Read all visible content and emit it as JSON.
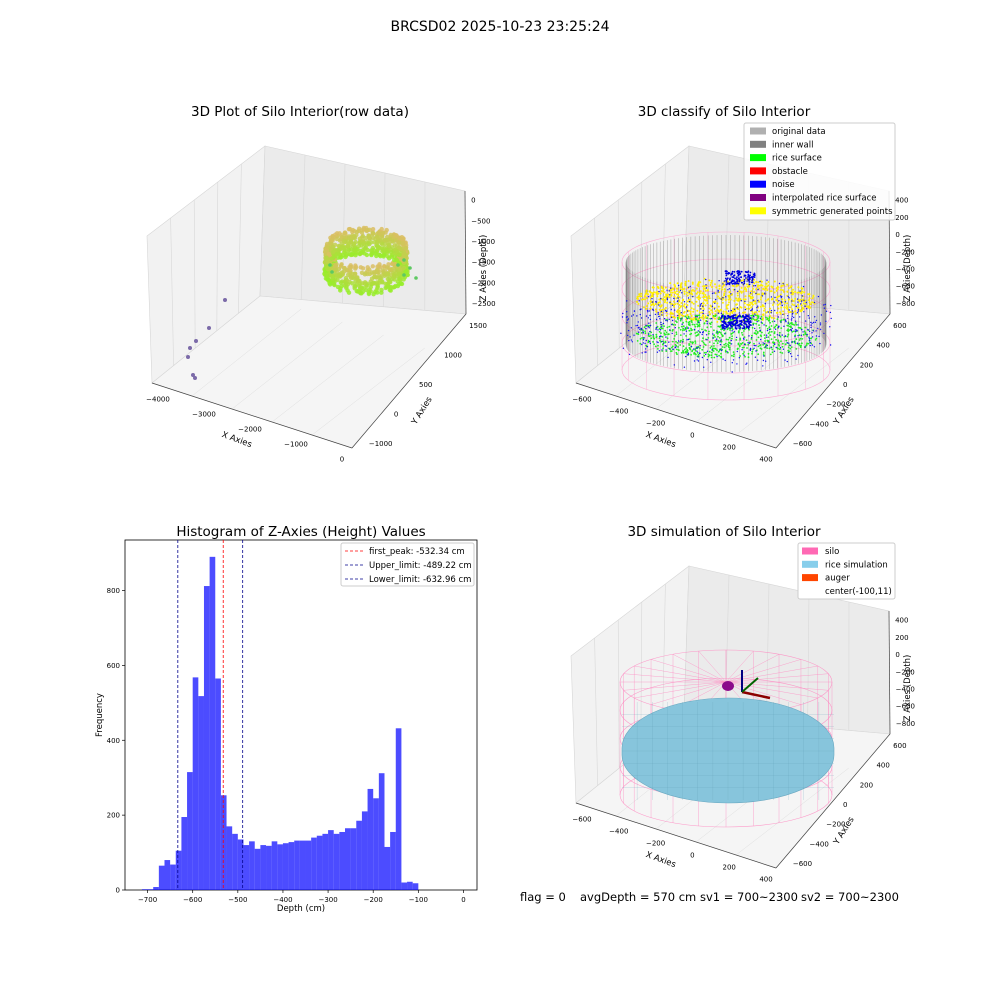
{
  "page": {
    "title": "BRCSD02 2025-10-23 23:25:24",
    "footer": {
      "flag": "flag = 0",
      "avg_depth": "avgDepth = 570 cm",
      "sv1": "sv1 = 700~2300",
      "sv2": "sv2 = 700~2300"
    }
  },
  "chart_data": [
    {
      "type": "scatter",
      "projection": "3d",
      "title": "3D Plot of Silo Interior(row data)",
      "xlabel": "X Axies",
      "ylabel": "Y Axies",
      "zlabel": "Z Axies (Depth)",
      "x_ticks": [
        "−4000",
        "−3000",
        "−2000",
        "−1000",
        "0"
      ],
      "y_ticks": [
        "−1000",
        "0",
        "500",
        "1000",
        "1500"
      ],
      "z_ticks": [
        "0",
        "−500",
        "−1000",
        "−1500",
        "−2000",
        "−2500"
      ],
      "colormap": "viridis",
      "outlier_points": [
        {
          "x": -3900,
          "y": 1200,
          "z": -2300
        },
        {
          "x": -3850,
          "y": 1150,
          "z": -2250
        },
        {
          "x": -3600,
          "y": 1100,
          "z": -1500
        },
        {
          "x": -3700,
          "y": 1300,
          "z": -1800
        }
      ]
    },
    {
      "type": "scatter",
      "projection": "3d",
      "title": "3D classify of Silo Interior",
      "xlabel": "X Axies",
      "ylabel": "Y Axies",
      "zlabel": "Z Axies (Depth)",
      "x_ticks": [
        "−600",
        "−400",
        "−200",
        "0",
        "200",
        "400"
      ],
      "y_ticks": [
        "−600",
        "−400",
        "−200",
        "0",
        "200",
        "400",
        "600"
      ],
      "z_ticks": [
        "400",
        "200",
        "0",
        "−200",
        "−400",
        "−600",
        "−800"
      ],
      "legend": [
        {
          "label": "original data",
          "color": "#b0b0b0"
        },
        {
          "label": "inner wall",
          "color": "#808080"
        },
        {
          "label": "rice surface",
          "color": "#00ff00"
        },
        {
          "label": "obstacle",
          "color": "#ff0000"
        },
        {
          "label": "noise",
          "color": "#0000ff"
        },
        {
          "label": "interpolated rice surface",
          "color": "#800080"
        },
        {
          "label": "symmetric generated points",
          "color": "#ffff00"
        }
      ],
      "legend_position": "top-right"
    },
    {
      "type": "bar",
      "title": "Histogram of Z-Axies (Height) Values",
      "xlabel": "Depth (cm)",
      "ylabel": "Frequency",
      "xlim": [
        -750,
        30
      ],
      "ylim": [
        0,
        935
      ],
      "bin_width": 12.5,
      "bin_start": -712.5,
      "values": [
        2,
        2,
        8,
        65,
        80,
        68,
        105,
        195,
        315,
        568,
        518,
        812,
        890,
        565,
        253,
        170,
        150,
        135,
        120,
        130,
        110,
        120,
        118,
        130,
        122,
        125,
        128,
        132,
        132,
        132,
        140,
        145,
        150,
        160,
        150,
        155,
        165,
        165,
        185,
        210,
        270,
        245,
        312,
        115,
        155,
        432,
        20,
        22,
        18
      ],
      "x_ticks": [
        "−700",
        "−600",
        "−500",
        "−400",
        "−300",
        "−200",
        "−100",
        "0"
      ],
      "x_tick_values": [
        -700,
        -600,
        -500,
        -400,
        -300,
        -200,
        -100,
        0
      ],
      "y_ticks": [
        "0",
        "200",
        "400",
        "600",
        "800"
      ],
      "y_tick_values": [
        0,
        200,
        400,
        600,
        800
      ],
      "bar_color": "#0000ff",
      "vlines": [
        {
          "label": "first_peak: -532.34 cm",
          "x": -532.34,
          "color": "#ff0000"
        },
        {
          "label": "Upper_limit: -489.22 cm",
          "x": -489.22,
          "color": "#00008b"
        },
        {
          "label": "Lower_limit: -632.96 cm",
          "x": -632.96,
          "color": "#00008b"
        }
      ],
      "legend_position": "top-right"
    },
    {
      "type": "scatter",
      "projection": "3d",
      "title": "3D simulation of Silo Interior",
      "xlabel": "X Axies",
      "ylabel": "Y Axies",
      "zlabel": "Z Axies (Depth)",
      "x_ticks": [
        "−600",
        "−400",
        "−200",
        "0",
        "200",
        "400"
      ],
      "y_ticks": [
        "−600",
        "−400",
        "−200",
        "0",
        "200",
        "400",
        "600"
      ],
      "z_ticks": [
        "400",
        "200",
        "0",
        "−200",
        "−400",
        "−600",
        "−800"
      ],
      "legend": [
        {
          "label": "silo",
          "color": "#ff69b4"
        },
        {
          "label": "rice simulation",
          "color": "#87ceeb"
        },
        {
          "label": "auger",
          "color": "#ff4500"
        },
        {
          "label": "center(-100,11)",
          "color": ""
        }
      ],
      "legend_position": "top-right"
    }
  ]
}
